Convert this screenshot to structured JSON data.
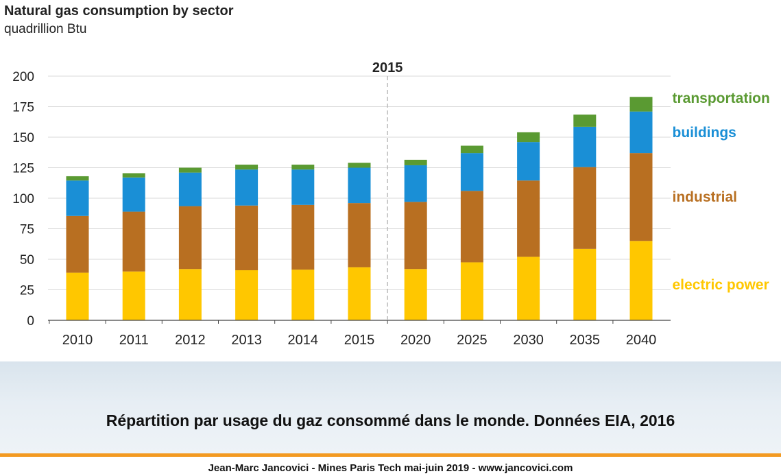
{
  "caption": "Répartition par usage du gaz consommé dans le monde. Données EIA, 2016",
  "footer": "Jean-Marc Jancovici - Mines Paris Tech mai-juin 2019 - www.jancovici.com",
  "colors": {
    "electric_power": "#ffc700",
    "industrial": "#b86f21",
    "buildings": "#1a8fd6",
    "transportation": "#5a9a32",
    "grid": "#d9d9d9",
    "divider": "#bbbbbb",
    "caption_band": "#e3ebf2",
    "orange_rule": "#f39a21"
  },
  "chart_data": {
    "type": "bar",
    "stacked": true,
    "title": "Natural gas consumption by sector",
    "subtitle": "quadrillion Btu",
    "xlabel": "",
    "ylabel": "",
    "categories": [
      "2010",
      "2011",
      "2012",
      "2013",
      "2014",
      "2015",
      "2020",
      "2025",
      "2030",
      "2035",
      "2040"
    ],
    "series": [
      {
        "name": "electric power",
        "color": "#ffc700",
        "values": [
          39,
          40,
          42,
          41,
          41.5,
          43.5,
          42,
          47.5,
          52,
          58.5,
          65
        ]
      },
      {
        "name": "industrial",
        "color": "#b86f21",
        "values": [
          46.5,
          49,
          51.5,
          53,
          53,
          52.5,
          55,
          58.5,
          62.5,
          67,
          72
        ]
      },
      {
        "name": "buildings",
        "color": "#1a8fd6",
        "values": [
          29,
          28,
          27.5,
          29.5,
          29,
          29,
          30,
          31,
          31.5,
          33,
          34
        ]
      },
      {
        "name": "transportation",
        "color": "#5a9a32",
        "values": [
          3.5,
          3.5,
          4,
          4,
          4,
          4,
          4.5,
          6,
          8,
          10,
          12
        ]
      }
    ],
    "ylim": [
      0,
      200
    ],
    "yticks": [
      0,
      25,
      50,
      75,
      100,
      125,
      150,
      175,
      200
    ],
    "grid": true,
    "divider": {
      "after_category": "2015",
      "label": "2015"
    },
    "legend_placement": "right (direct labels beside the 2040 bar)"
  }
}
